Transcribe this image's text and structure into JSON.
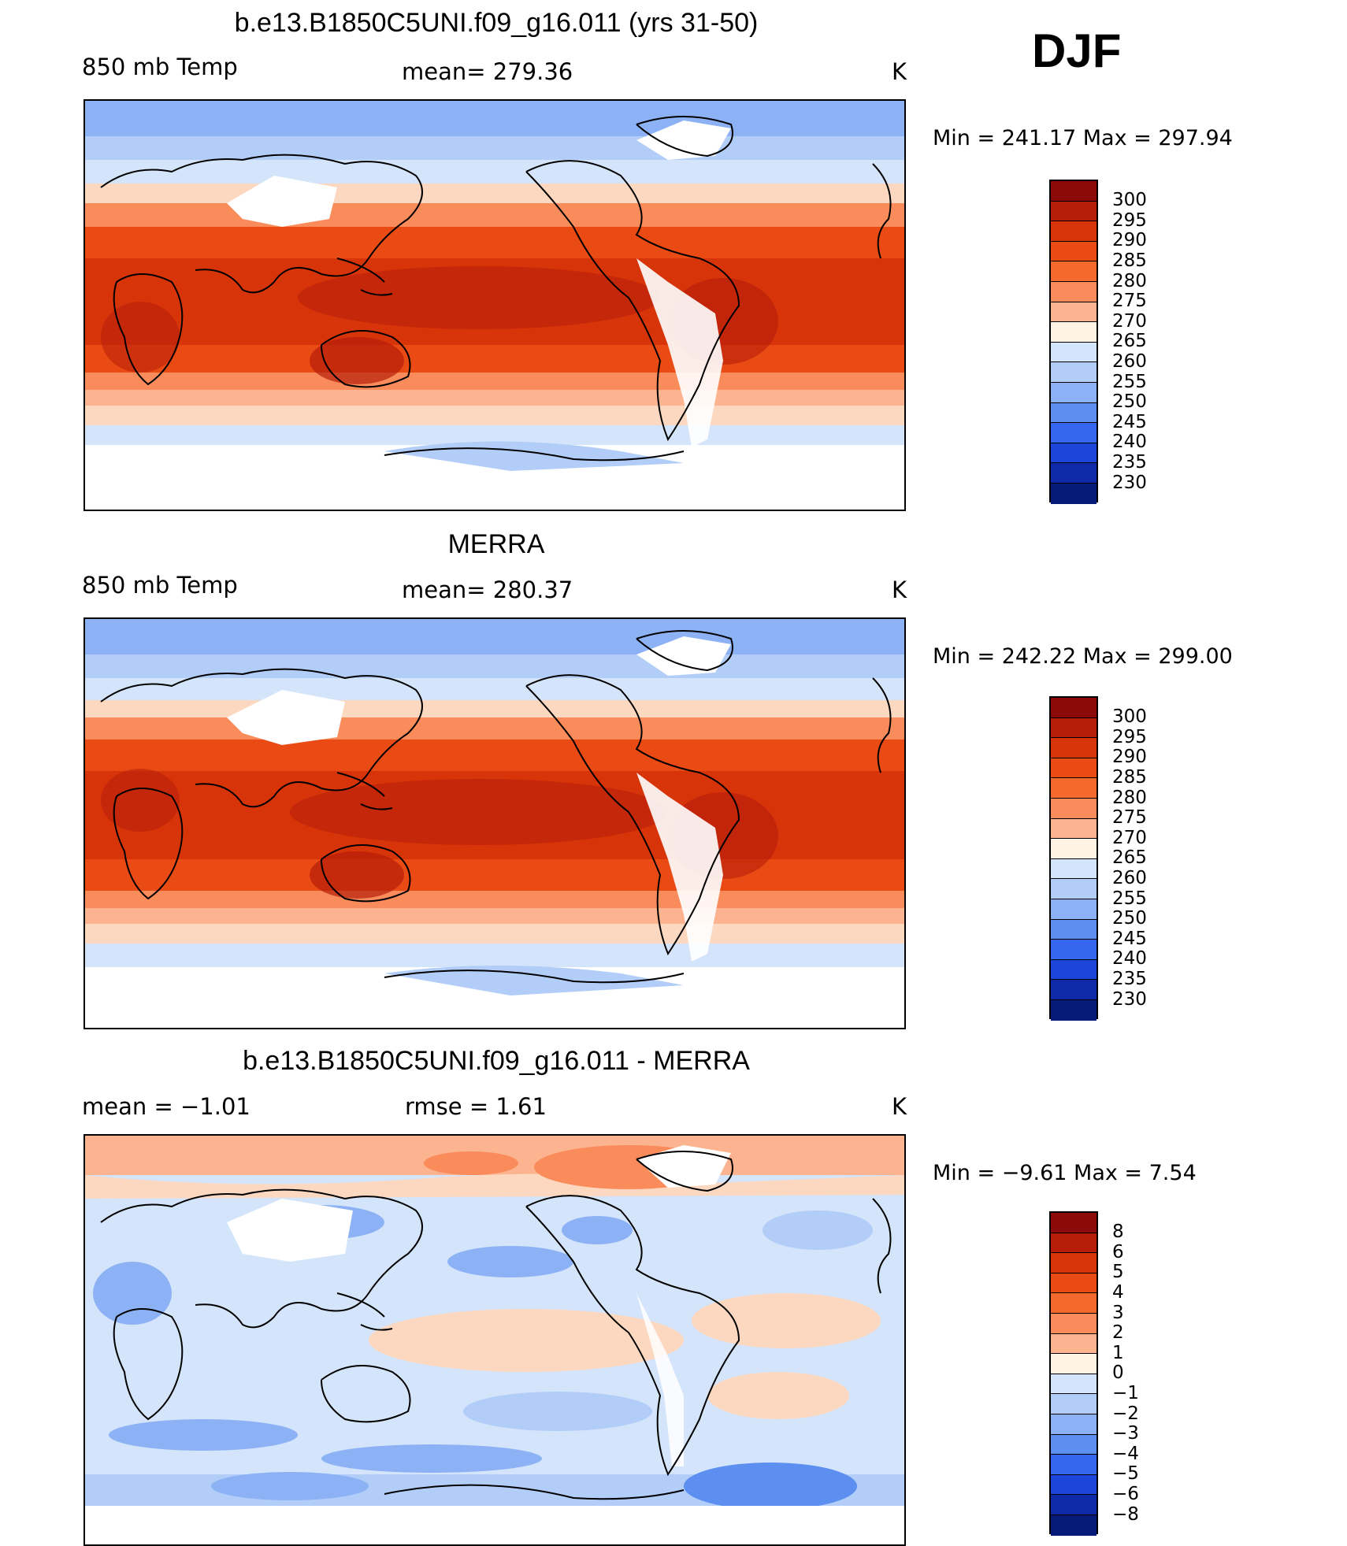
{
  "season": "DJF",
  "panels": [
    {
      "title": "b.e13.B1850C5UNI.f09_g16.011 (yrs 31-50)",
      "left_label": "850 mb Temp",
      "center_label": "mean= 279.36",
      "units": "K",
      "minmax": "Min  =  241.17  Max  =  297.94",
      "levels": [
        "300",
        "295",
        "290",
        "285",
        "280",
        "275",
        "270",
        "265",
        "260",
        "255",
        "250",
        "245",
        "240",
        "235",
        "230"
      ],
      "colors": [
        "#8c0a0a",
        "#b51d0a",
        "#d8340a",
        "#ea4b14",
        "#f46a2e",
        "#fa8c5c",
        "#fcb38f",
        "#fdd8c0",
        "#fff3e6",
        "#d4e4fa",
        "#b1cdf8",
        "#8cb2f5",
        "#5d8ff0",
        "#3566ed",
        "#1c45d9",
        "#0f2aa8",
        "#061a7a"
      ]
    },
    {
      "title": "MERRA",
      "left_label": "850 mb Temp",
      "center_label": "mean= 280.37",
      "units": "K",
      "minmax": "Min  =  242.22  Max  =  299.00",
      "levels": [
        "300",
        "295",
        "290",
        "285",
        "280",
        "275",
        "270",
        "265",
        "260",
        "255",
        "250",
        "245",
        "240",
        "235",
        "230"
      ],
      "colors": [
        "#8c0a0a",
        "#b51d0a",
        "#d8340a",
        "#ea4b14",
        "#f46a2e",
        "#fa8c5c",
        "#fcb38f",
        "#fdd8c0",
        "#fff3e6",
        "#d4e4fa",
        "#b1cdf8",
        "#8cb2f5",
        "#5d8ff0",
        "#3566ed",
        "#1c45d9",
        "#0f2aa8",
        "#061a7a"
      ]
    },
    {
      "title": "b.e13.B1850C5UNI.f09_g16.011 - MERRA",
      "left_label": "mean =     −1.01",
      "center_label": "rmse =      1.61",
      "units": "K",
      "minmax": "Min  =    −9.61  Max  =      7.54",
      "levels": [
        "8",
        "6",
        "5",
        "4",
        "3",
        "2",
        "1",
        "0",
        "−1",
        "−2",
        "−3",
        "−4",
        "−5",
        "−6",
        "−8"
      ],
      "colors": [
        "#8c0a0a",
        "#b51d0a",
        "#d8340a",
        "#ea4b14",
        "#f46a2e",
        "#fa8c5c",
        "#fcb38f",
        "#fdd8c0",
        "#fff3e6",
        "#d4e4fa",
        "#b1cdf8",
        "#8cb2f5",
        "#5d8ff0",
        "#3566ed",
        "#1c45d9",
        "#0f2aa8",
        "#061a7a"
      ]
    }
  ]
}
